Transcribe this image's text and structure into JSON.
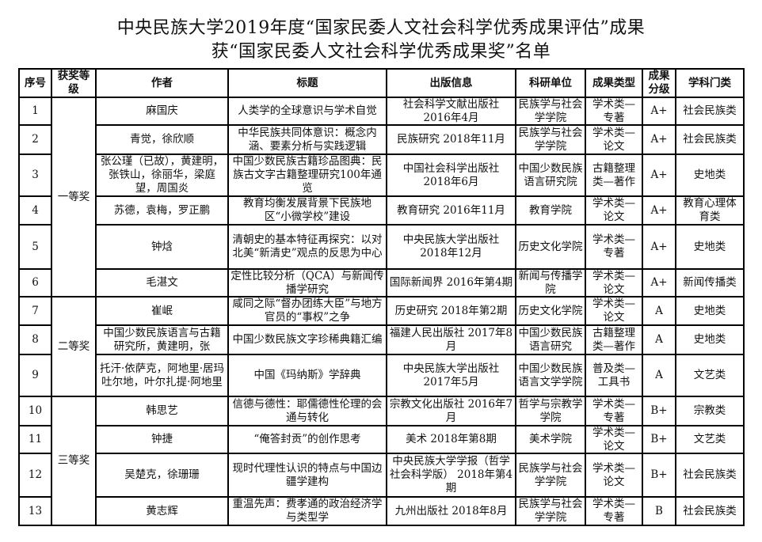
{
  "document": {
    "title_line1": "中央民族大学2019年度“国家民委人文社会科学优秀成果评估”成果",
    "title_line2": "获“国家民委人文社会科学优秀成果奖”名单"
  },
  "table": {
    "headers": [
      "序号",
      "获奖等级",
      "作者",
      "标题",
      "出版信息",
      "科研单位",
      "成果类型",
      "成果分级",
      "学科门类"
    ],
    "groups": [
      {
        "label": "一等奖",
        "span": 6
      },
      {
        "label": "二等奖",
        "span": 3
      },
      {
        "label": "三等奖",
        "span": 4
      }
    ],
    "rows": [
      {
        "no": "1",
        "author": "麻国庆",
        "title": "人类学的全球意识与学术自觉",
        "pub": "社会科学文献出版社 2016年4月",
        "unit": "民族学与社会学学院",
        "type": "学术类—专著",
        "grade": "A+",
        "field": "社会民族类"
      },
      {
        "no": "2",
        "author": "青觉，徐欣顺",
        "title": "中华民族共同体意识：概念内涵、要素分析与实践逻辑",
        "pub": "民族研究 2018年11月",
        "unit": "民族学与社会学学院",
        "type": "学术类—论文",
        "grade": "A+",
        "field": "社会民族类"
      },
      {
        "no": "3",
        "author": "张公瑾（已故），黄建明，张铁山，徐丽华，梁庭望，周国炎",
        "title": "中国少数民族古籍珍品图典：民族古文字古籍整理研究100年通览",
        "pub": "中国社会科学出版社 2018年6月",
        "unit": "中国少数民族语言研究院",
        "type": "古籍整理类—著作",
        "grade": "A+",
        "field": "史地类"
      },
      {
        "no": "4",
        "author": "苏德，袁梅，罗正鹏",
        "title": "教育均衡发展背景下民族地区“小微学校”建设",
        "pub": "教育研究 2016年11月",
        "unit": "教育学院",
        "type": "学术类—论文",
        "grade": "A+",
        "field": "教育心理体育类"
      },
      {
        "no": "5",
        "author": "钟焓",
        "title": "清朝史的基本特征再探究：以对北美“新清史”观点的反思为中心",
        "pub": "中央民族大学出版社 2018年12月",
        "unit": "历史文化学院",
        "type": "学术类—专著",
        "grade": "A+",
        "field": "史地类"
      },
      {
        "no": "6",
        "author": "毛湛文",
        "title": "定性比较分析（QCA）与新闻传播学研究",
        "pub": "国际新闻界 2016年第4期",
        "unit": "新闻与传播学院",
        "type": "学术类—论文",
        "grade": "A+",
        "field": "新闻传播类"
      },
      {
        "no": "7",
        "author": "崔岷",
        "title": "咸同之际“督办团练大臣”与地方官员的“事权”之争",
        "pub": "历史研究 2018年第2期",
        "unit": "历史文化学院",
        "type": "学术类—论文",
        "grade": "A",
        "field": "史地类"
      },
      {
        "no": "8",
        "author": "中国少数民族语言与古籍研究所，黄建明，张",
        "title": "中国少数民族文字珍稀典籍汇编",
        "pub": "福建人民出版社 2017年8月",
        "unit": "中国少数民族语言研究",
        "type": "古籍整理类—著作",
        "grade": "A",
        "field": "史地类"
      },
      {
        "no": "9",
        "author": "托汗·依萨克，阿地里·居玛吐尔地，叶尔扎提·阿地里",
        "title": "中国《玛纳斯》学辞典",
        "pub": "中央民族大学出版社 2017年5月",
        "unit": "中国少数民族语言文学学院",
        "type": "普及类—工具书",
        "grade": "A",
        "field": "文艺类"
      },
      {
        "no": "10",
        "author": "韩思艺",
        "title": "信德与德性：耶儒德性伦理的会通与转化",
        "pub": "宗教文化出版社 2016年7月",
        "unit": "哲学与宗教学学院",
        "type": "学术类—专著",
        "grade": "B+",
        "field": "宗教类"
      },
      {
        "no": "11",
        "author": "钟捷",
        "title": "“俺答封贡”的创作思考",
        "pub": "美术 2018年第8期",
        "unit": "美术学院",
        "type": "学术类—论文",
        "grade": "B+",
        "field": "文艺类"
      },
      {
        "no": "12",
        "author": "吴楚克，徐珊珊",
        "title": "现时代理性认识的特点与中国边疆学建构",
        "pub": "中央民族大学学报（哲学社会科学版） 2018年第4期",
        "unit": "民族学与社会学学院",
        "type": "学术类—论文",
        "grade": "B+",
        "field": "社会民族类"
      },
      {
        "no": "13",
        "author": "黄志辉",
        "title": "重温先声：费孝通的政治经济学与类型学",
        "pub": "九州出版社 2018年8月",
        "unit": "民族学与社会学学院",
        "type": "学术类—专著",
        "grade": "B",
        "field": "社会民族类"
      }
    ]
  }
}
